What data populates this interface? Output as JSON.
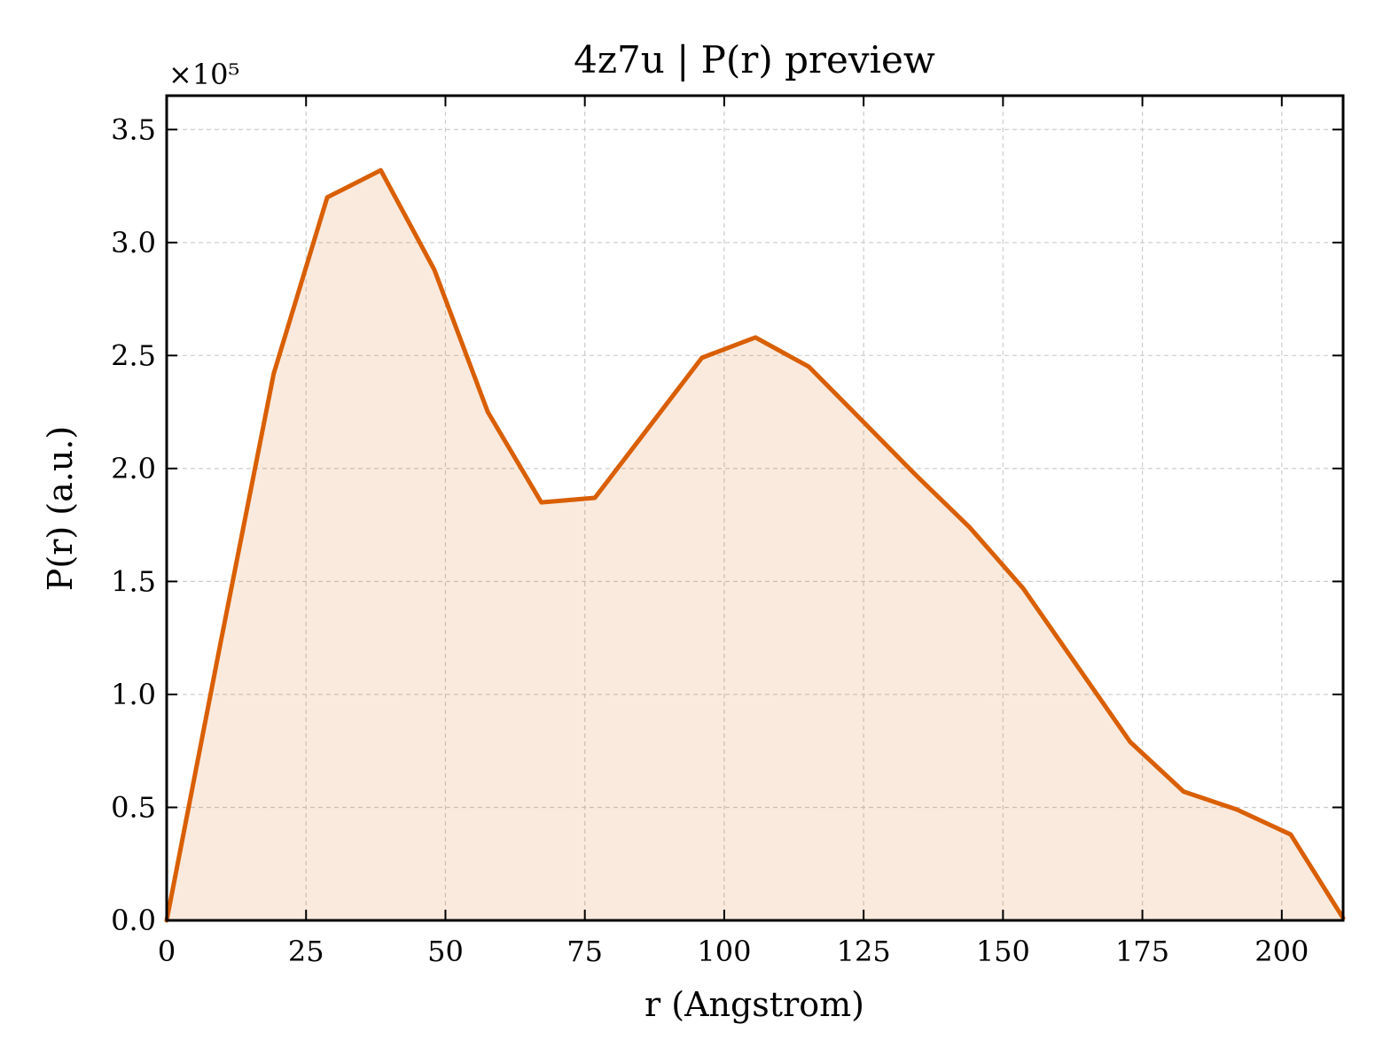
{
  "chart_data": {
    "type": "area",
    "title": "4z7u | P(r) preview",
    "xlabel": "r (Angstrom)",
    "ylabel": "P(r) (a.u.)",
    "y_multiplier_label": "×10⁵",
    "y_scale": 100000,
    "xlim": [
      0,
      211
    ],
    "ylim": [
      0,
      3.65
    ],
    "x_ticks": [
      0,
      25,
      50,
      75,
      100,
      125,
      150,
      175,
      200
    ],
    "x_tick_labels": [
      "0",
      "25",
      "50",
      "75",
      "100",
      "125",
      "150",
      "175",
      "200"
    ],
    "y_ticks": [
      0,
      0.5,
      1.0,
      1.5,
      2.0,
      2.5,
      3.0,
      3.5
    ],
    "y_tick_labels": [
      "0.0",
      "0.5",
      "1.0",
      "1.5",
      "2.0",
      "2.5",
      "3.0",
      "3.5"
    ],
    "grid": true,
    "series": [
      {
        "x": [
          0,
          9.6,
          19.2,
          28.8,
          38.4,
          48.0,
          57.6,
          67.2,
          76.8,
          86.4,
          96.0,
          105.6,
          115.2,
          124.8,
          134.4,
          144.0,
          153.6,
          163.2,
          172.8,
          182.4,
          192.0,
          201.6,
          211.0
        ],
        "y": [
          0.0,
          1.22,
          2.42,
          3.2,
          3.32,
          2.88,
          2.25,
          1.85,
          1.87,
          2.18,
          2.49,
          2.58,
          2.45,
          2.21,
          1.97,
          1.74,
          1.47,
          1.13,
          0.79,
          0.57,
          0.49,
          0.38,
          0.01
        ],
        "color": "#d95f02"
      }
    ],
    "fill_color": "#d95f02",
    "fill_opacity": 0.13
  }
}
